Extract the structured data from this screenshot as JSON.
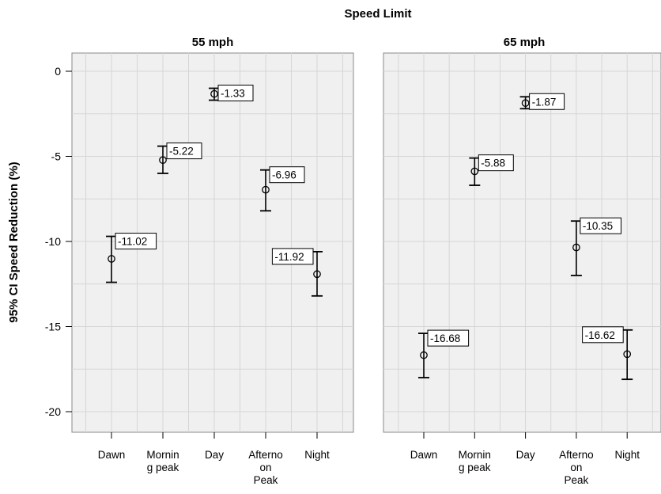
{
  "chart_data": {
    "type": "errorbar",
    "title": "Speed Limit",
    "ylabel": "95% CI Speed Reduction (%)",
    "xlabel": "",
    "ylim": [
      -21,
      2
    ],
    "yticks": [
      0,
      -5,
      -10,
      -15,
      -20
    ],
    "ytick_labels": [
      "0",
      "-5",
      "-10",
      "-15",
      "-20"
    ],
    "grid": true,
    "categories": [
      "Dawn",
      "Mornin g peak",
      "Day",
      "Afterno on Peak",
      "Night"
    ],
    "category_label_lines": [
      [
        "Dawn"
      ],
      [
        "Mornin",
        "g peak"
      ],
      [
        "Day"
      ],
      [
        "Afterno",
        "on",
        "Peak"
      ],
      [
        "Night"
      ]
    ],
    "panels": [
      {
        "name": "55 mph",
        "means": [
          -11.02,
          -5.22,
          -1.33,
          -6.96,
          -11.92
        ],
        "lower": [
          -12.4,
          -6.0,
          -1.7,
          -8.2,
          -13.2
        ],
        "upper": [
          -9.7,
          -4.4,
          -1.0,
          -5.8,
          -10.6
        ],
        "labels": [
          "-11.02",
          "-5.22",
          "-1.33",
          "-6.96",
          "-11.92"
        ],
        "label_side": [
          "right",
          "right",
          "right",
          "right",
          "left"
        ]
      },
      {
        "name": "65 mph",
        "means": [
          -16.68,
          -5.88,
          -1.87,
          -10.35,
          -16.62
        ],
        "lower": [
          -18.0,
          -6.7,
          -2.2,
          -12.0,
          -18.1
        ],
        "upper": [
          -15.4,
          -5.1,
          -1.5,
          -8.8,
          -15.2
        ],
        "labels": [
          "-16.68",
          "-5.88",
          "-1.87",
          "-10.35",
          "-16.62"
        ],
        "label_side": [
          "right",
          "right",
          "right",
          "right",
          "left"
        ]
      }
    ]
  }
}
